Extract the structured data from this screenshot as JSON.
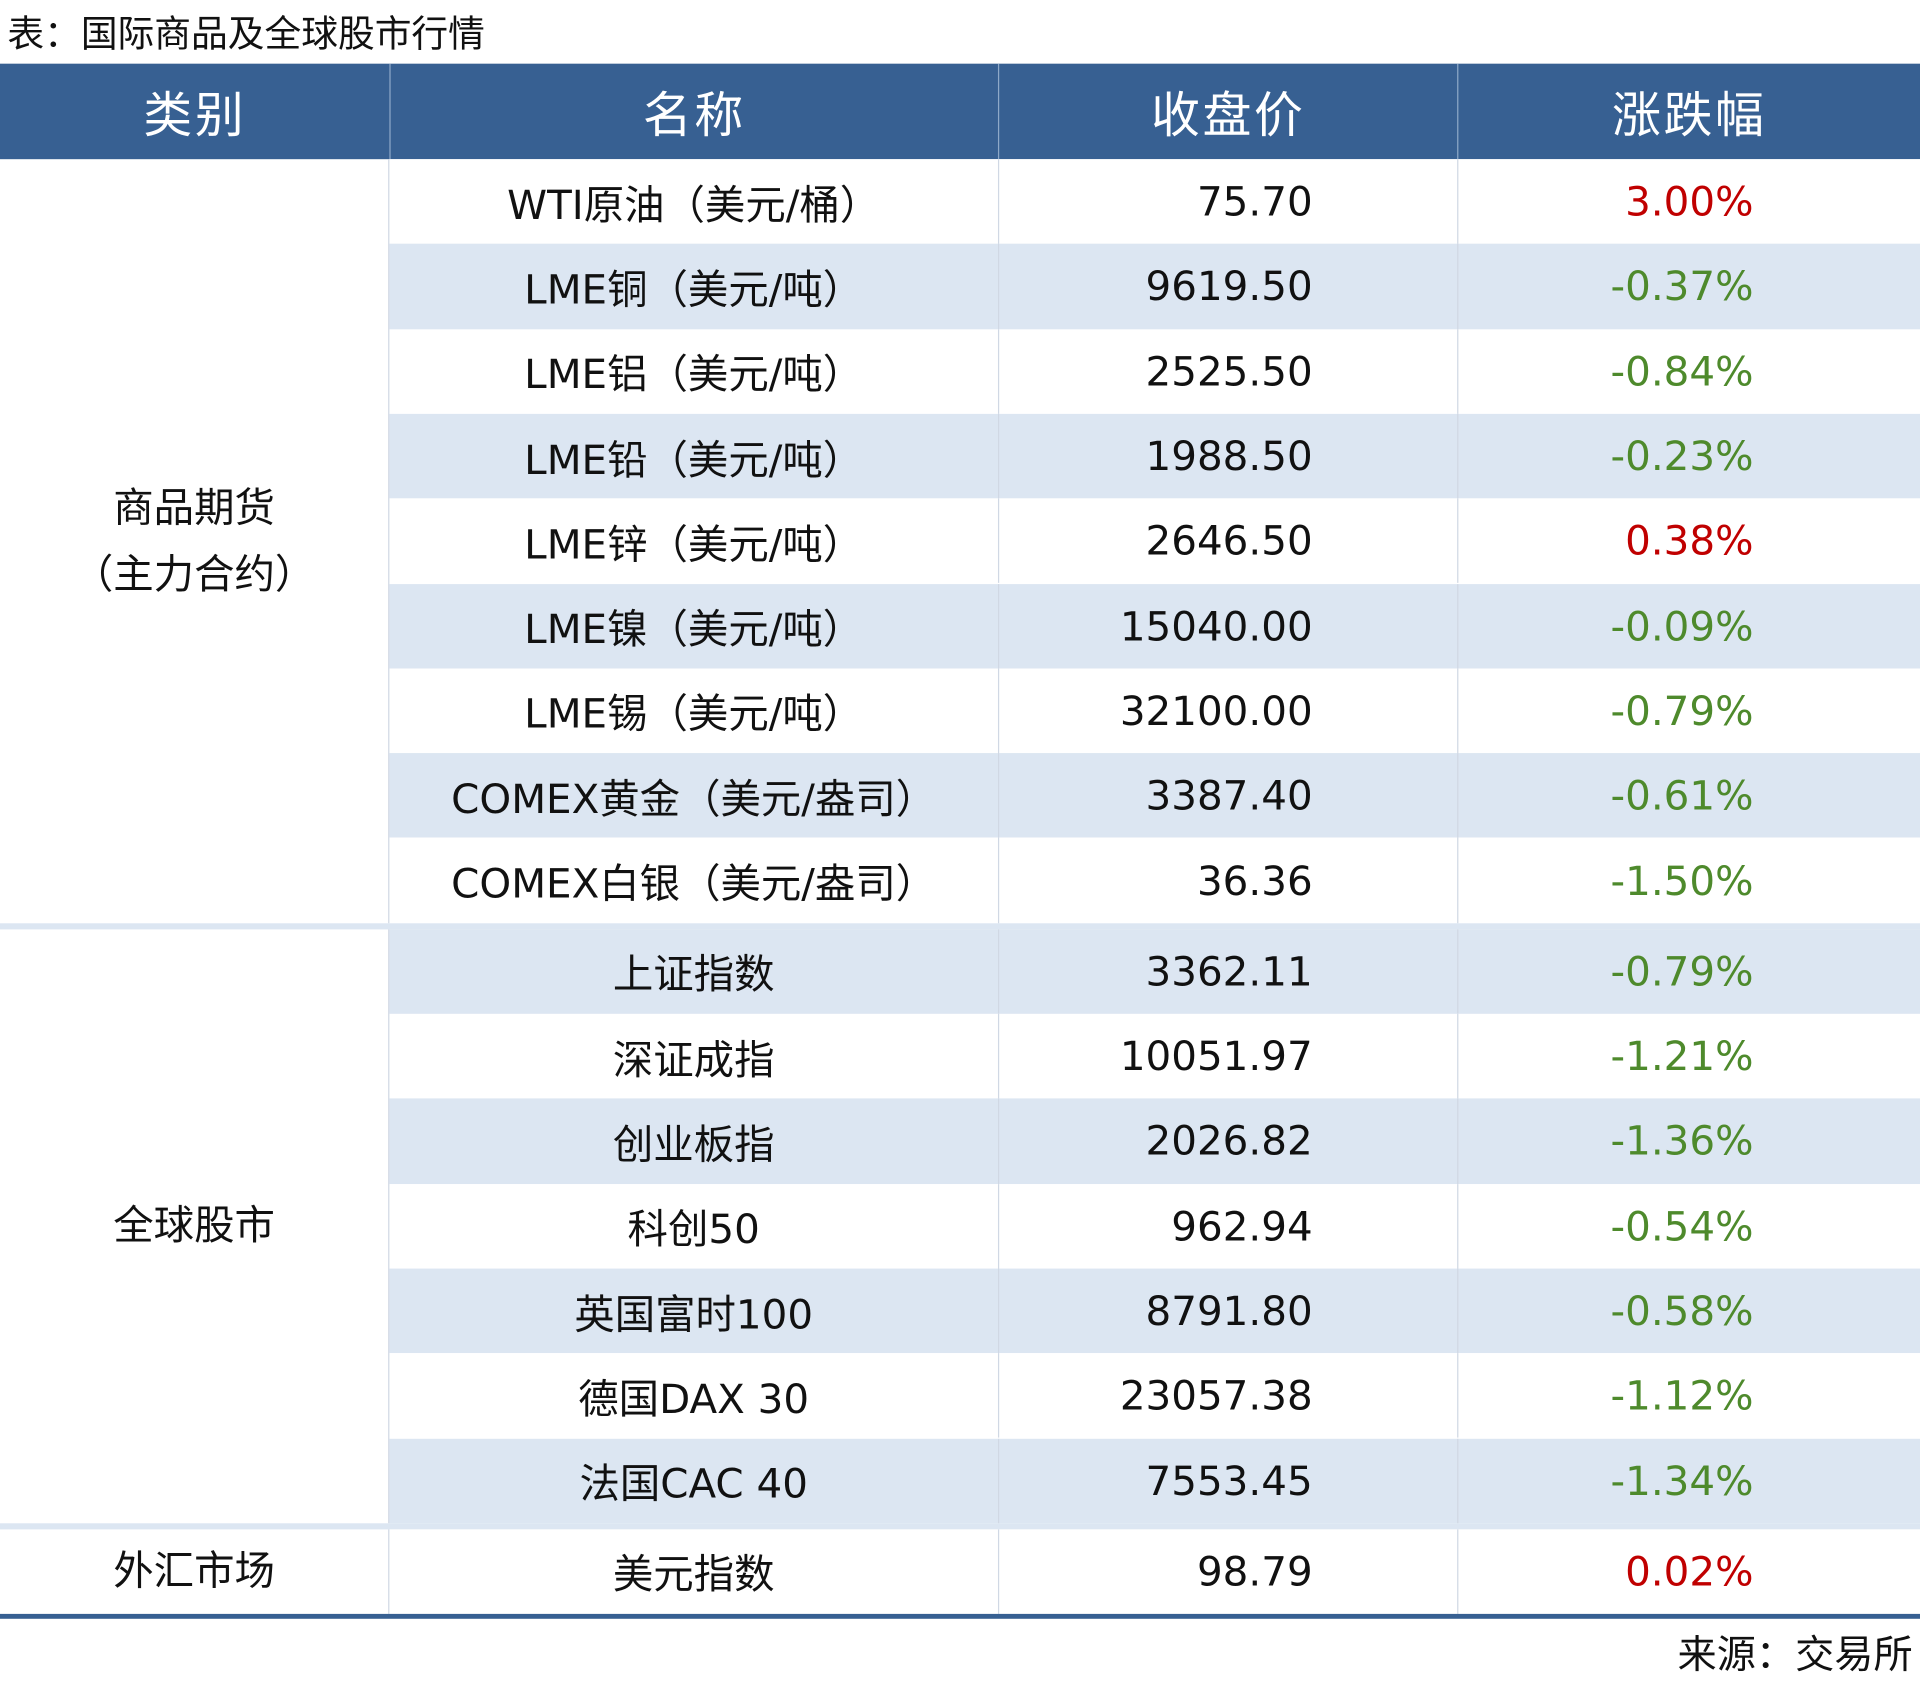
{
  "title": "表：国际商品及全球股市行情",
  "header": [
    "类别",
    "名称",
    "收盘价",
    "涨跌幅"
  ],
  "groups": [
    {
      "category": [
        "商品期货",
        "（主力合约）"
      ],
      "rows": [
        [
          "WTI原油（美元/桶）",
          "75.70",
          "3.00%"
        ],
        [
          "LME铜（美元/吨）",
          "9619.50",
          "-0.37%"
        ],
        [
          "LME铝（美元/吨）",
          "2525.50",
          "-0.84%"
        ],
        [
          "LME铅（美元/吨）",
          "1988.50",
          "-0.23%"
        ],
        [
          "LME锌（美元/吨）",
          "2646.50",
          "0.38%"
        ],
        [
          "LME镍（美元/吨）",
          "15040.00",
          "-0.09%"
        ],
        [
          "LME锡（美元/吨）",
          "32100.00",
          "-0.79%"
        ],
        [
          "COMEX黄金（美元/盎司）",
          "3387.40",
          "-0.61%"
        ],
        [
          "COMEX白银（美元/盎司）",
          "36.36",
          "-1.50%"
        ]
      ]
    },
    {
      "category": [
        "全球股市"
      ],
      "rows": [
        [
          "上证指数",
          "3362.11",
          "-0.79%"
        ],
        [
          "深证成指",
          "10051.97",
          "-1.21%"
        ],
        [
          "创业板指",
          "2026.82",
          "-1.36%"
        ],
        [
          "科创50",
          "962.94",
          "-0.54%"
        ],
        [
          "英国富时100",
          "8791.80",
          "-0.58%"
        ],
        [
          "德国DAX 30",
          "23057.38",
          "-1.12%"
        ],
        [
          "法国CAC 40",
          "7553.45",
          "-1.34%"
        ]
      ]
    },
    {
      "category": [
        "外汇市场"
      ],
      "rows": [
        [
          "美元指数",
          "98.79",
          "0.02%"
        ]
      ]
    }
  ],
  "source": "来源：交易所"
}
